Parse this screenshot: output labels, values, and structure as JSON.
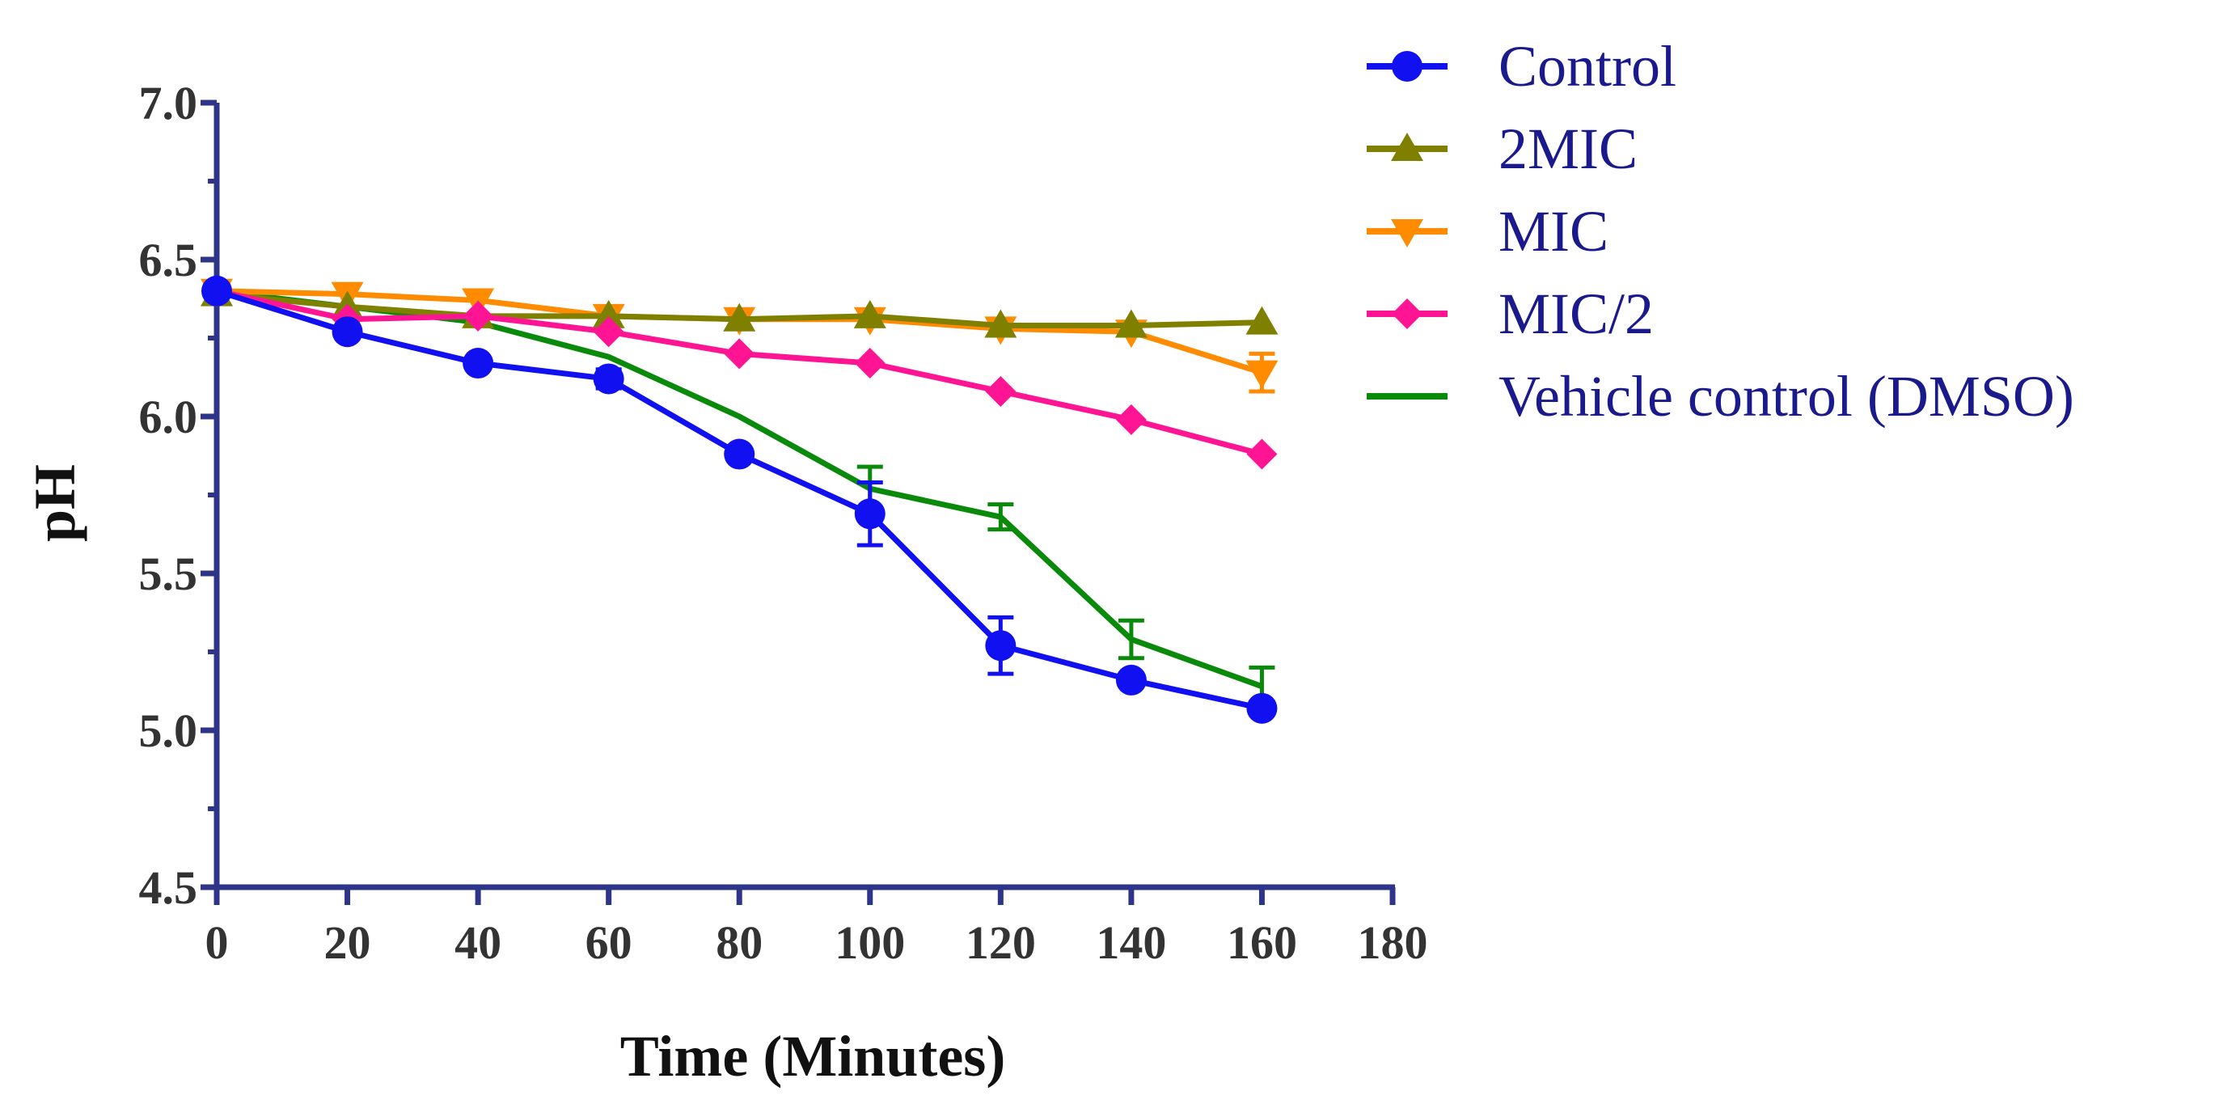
{
  "chart_data": {
    "type": "line",
    "title": "",
    "xlabel": "Time (Minutes)",
    "ylabel": "pH",
    "xlim": [
      0,
      180
    ],
    "ylim": [
      4.5,
      7.0
    ],
    "xticks": [
      "0",
      "20",
      "40",
      "60",
      "80",
      "100",
      "120",
      "140",
      "160",
      "180"
    ],
    "xtick_values": [
      0,
      20,
      40,
      60,
      80,
      100,
      120,
      140,
      160,
      180
    ],
    "yticks": [
      "4.5",
      "5.0",
      "5.5",
      "6.0",
      "6.5",
      "7.0"
    ],
    "ytick_values": [
      4.5,
      5.0,
      5.5,
      6.0,
      6.5,
      7.0
    ],
    "grid": false,
    "legend_position": "top-right",
    "x": [
      0,
      20,
      40,
      60,
      80,
      100,
      120,
      140,
      160
    ],
    "series": [
      {
        "name": "Control",
        "color": "#1010f0",
        "marker": "circle",
        "values": [
          6.4,
          6.27,
          6.17,
          6.12,
          5.88,
          5.69,
          5.27,
          5.16,
          5.07
        ],
        "errors": [
          0,
          0,
          0,
          0.03,
          0,
          0.1,
          0.09,
          0,
          0
        ]
      },
      {
        "name": "2MIC",
        "color": "#808000",
        "marker": "triangle-up",
        "values": [
          6.39,
          6.35,
          6.32,
          6.32,
          6.31,
          6.32,
          6.29,
          6.29,
          6.3
        ],
        "errors": [
          0,
          0,
          0,
          0,
          0,
          0,
          0,
          0,
          0
        ]
      },
      {
        "name": "MIC",
        "color": "#ff8c00",
        "marker": "triangle-down",
        "values": [
          6.4,
          6.39,
          6.37,
          6.32,
          6.31,
          6.31,
          6.28,
          6.27,
          6.14
        ],
        "errors": [
          0,
          0,
          0,
          0,
          0,
          0,
          0,
          0,
          0.06
        ]
      },
      {
        "name": "MIC/2",
        "color": "#ff1493",
        "marker": "diamond",
        "values": [
          6.4,
          6.31,
          6.32,
          6.27,
          6.2,
          6.17,
          6.08,
          5.99,
          5.88
        ],
        "errors": [
          0,
          0,
          0,
          0,
          0,
          0,
          0,
          0,
          0
        ]
      },
      {
        "name": "Vehicle control (DMSO)",
        "color": "#0a8a0a",
        "marker": "none",
        "values": [
          6.4,
          6.35,
          6.3,
          6.19,
          6.0,
          5.77,
          5.68,
          5.29,
          5.14
        ],
        "errors": [
          0,
          0,
          0,
          0,
          0,
          0.07,
          0.04,
          0.06,
          0.06
        ]
      }
    ]
  }
}
